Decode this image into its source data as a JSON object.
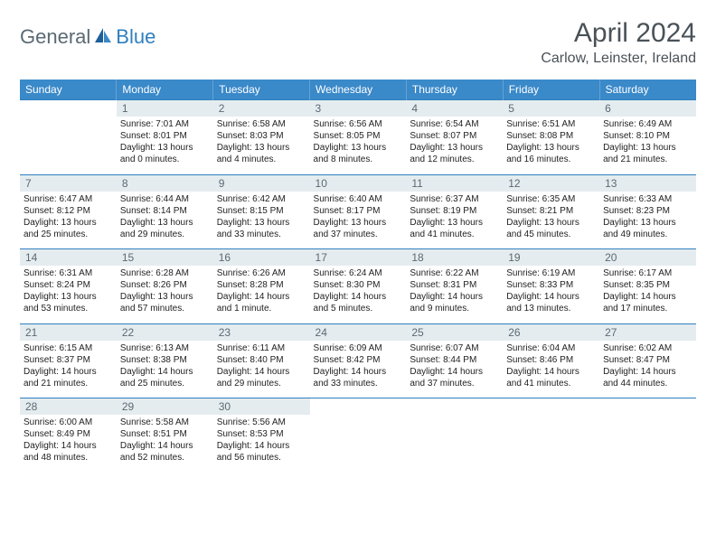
{
  "brand": {
    "part1": "General",
    "part2": "Blue"
  },
  "title": "April 2024",
  "location": "Carlow, Leinster, Ireland",
  "colors": {
    "header_bg": "#3a89c9",
    "header_text": "#ffffff",
    "daynum_bg": "#e5ecef",
    "rule": "#2f7fbf",
    "body_text": "#1f1f1f",
    "muted": "#5a6a74",
    "brand_blue": "#2f7fbf"
  },
  "weekdays": [
    "Sunday",
    "Monday",
    "Tuesday",
    "Wednesday",
    "Thursday",
    "Friday",
    "Saturday"
  ],
  "weeks": [
    [
      null,
      {
        "n": "1",
        "sr": "Sunrise: 7:01 AM",
        "ss": "Sunset: 8:01 PM",
        "dl": "Daylight: 13 hours and 0 minutes."
      },
      {
        "n": "2",
        "sr": "Sunrise: 6:58 AM",
        "ss": "Sunset: 8:03 PM",
        "dl": "Daylight: 13 hours and 4 minutes."
      },
      {
        "n": "3",
        "sr": "Sunrise: 6:56 AM",
        "ss": "Sunset: 8:05 PM",
        "dl": "Daylight: 13 hours and 8 minutes."
      },
      {
        "n": "4",
        "sr": "Sunrise: 6:54 AM",
        "ss": "Sunset: 8:07 PM",
        "dl": "Daylight: 13 hours and 12 minutes."
      },
      {
        "n": "5",
        "sr": "Sunrise: 6:51 AM",
        "ss": "Sunset: 8:08 PM",
        "dl": "Daylight: 13 hours and 16 minutes."
      },
      {
        "n": "6",
        "sr": "Sunrise: 6:49 AM",
        "ss": "Sunset: 8:10 PM",
        "dl": "Daylight: 13 hours and 21 minutes."
      }
    ],
    [
      {
        "n": "7",
        "sr": "Sunrise: 6:47 AM",
        "ss": "Sunset: 8:12 PM",
        "dl": "Daylight: 13 hours and 25 minutes."
      },
      {
        "n": "8",
        "sr": "Sunrise: 6:44 AM",
        "ss": "Sunset: 8:14 PM",
        "dl": "Daylight: 13 hours and 29 minutes."
      },
      {
        "n": "9",
        "sr": "Sunrise: 6:42 AM",
        "ss": "Sunset: 8:15 PM",
        "dl": "Daylight: 13 hours and 33 minutes."
      },
      {
        "n": "10",
        "sr": "Sunrise: 6:40 AM",
        "ss": "Sunset: 8:17 PM",
        "dl": "Daylight: 13 hours and 37 minutes."
      },
      {
        "n": "11",
        "sr": "Sunrise: 6:37 AM",
        "ss": "Sunset: 8:19 PM",
        "dl": "Daylight: 13 hours and 41 minutes."
      },
      {
        "n": "12",
        "sr": "Sunrise: 6:35 AM",
        "ss": "Sunset: 8:21 PM",
        "dl": "Daylight: 13 hours and 45 minutes."
      },
      {
        "n": "13",
        "sr": "Sunrise: 6:33 AM",
        "ss": "Sunset: 8:23 PM",
        "dl": "Daylight: 13 hours and 49 minutes."
      }
    ],
    [
      {
        "n": "14",
        "sr": "Sunrise: 6:31 AM",
        "ss": "Sunset: 8:24 PM",
        "dl": "Daylight: 13 hours and 53 minutes."
      },
      {
        "n": "15",
        "sr": "Sunrise: 6:28 AM",
        "ss": "Sunset: 8:26 PM",
        "dl": "Daylight: 13 hours and 57 minutes."
      },
      {
        "n": "16",
        "sr": "Sunrise: 6:26 AM",
        "ss": "Sunset: 8:28 PM",
        "dl": "Daylight: 14 hours and 1 minute."
      },
      {
        "n": "17",
        "sr": "Sunrise: 6:24 AM",
        "ss": "Sunset: 8:30 PM",
        "dl": "Daylight: 14 hours and 5 minutes."
      },
      {
        "n": "18",
        "sr": "Sunrise: 6:22 AM",
        "ss": "Sunset: 8:31 PM",
        "dl": "Daylight: 14 hours and 9 minutes."
      },
      {
        "n": "19",
        "sr": "Sunrise: 6:19 AM",
        "ss": "Sunset: 8:33 PM",
        "dl": "Daylight: 14 hours and 13 minutes."
      },
      {
        "n": "20",
        "sr": "Sunrise: 6:17 AM",
        "ss": "Sunset: 8:35 PM",
        "dl": "Daylight: 14 hours and 17 minutes."
      }
    ],
    [
      {
        "n": "21",
        "sr": "Sunrise: 6:15 AM",
        "ss": "Sunset: 8:37 PM",
        "dl": "Daylight: 14 hours and 21 minutes."
      },
      {
        "n": "22",
        "sr": "Sunrise: 6:13 AM",
        "ss": "Sunset: 8:38 PM",
        "dl": "Daylight: 14 hours and 25 minutes."
      },
      {
        "n": "23",
        "sr": "Sunrise: 6:11 AM",
        "ss": "Sunset: 8:40 PM",
        "dl": "Daylight: 14 hours and 29 minutes."
      },
      {
        "n": "24",
        "sr": "Sunrise: 6:09 AM",
        "ss": "Sunset: 8:42 PM",
        "dl": "Daylight: 14 hours and 33 minutes."
      },
      {
        "n": "25",
        "sr": "Sunrise: 6:07 AM",
        "ss": "Sunset: 8:44 PM",
        "dl": "Daylight: 14 hours and 37 minutes."
      },
      {
        "n": "26",
        "sr": "Sunrise: 6:04 AM",
        "ss": "Sunset: 8:46 PM",
        "dl": "Daylight: 14 hours and 41 minutes."
      },
      {
        "n": "27",
        "sr": "Sunrise: 6:02 AM",
        "ss": "Sunset: 8:47 PM",
        "dl": "Daylight: 14 hours and 44 minutes."
      }
    ],
    [
      {
        "n": "28",
        "sr": "Sunrise: 6:00 AM",
        "ss": "Sunset: 8:49 PM",
        "dl": "Daylight: 14 hours and 48 minutes."
      },
      {
        "n": "29",
        "sr": "Sunrise: 5:58 AM",
        "ss": "Sunset: 8:51 PM",
        "dl": "Daylight: 14 hours and 52 minutes."
      },
      {
        "n": "30",
        "sr": "Sunrise: 5:56 AM",
        "ss": "Sunset: 8:53 PM",
        "dl": "Daylight: 14 hours and 56 minutes."
      },
      null,
      null,
      null,
      null
    ]
  ]
}
